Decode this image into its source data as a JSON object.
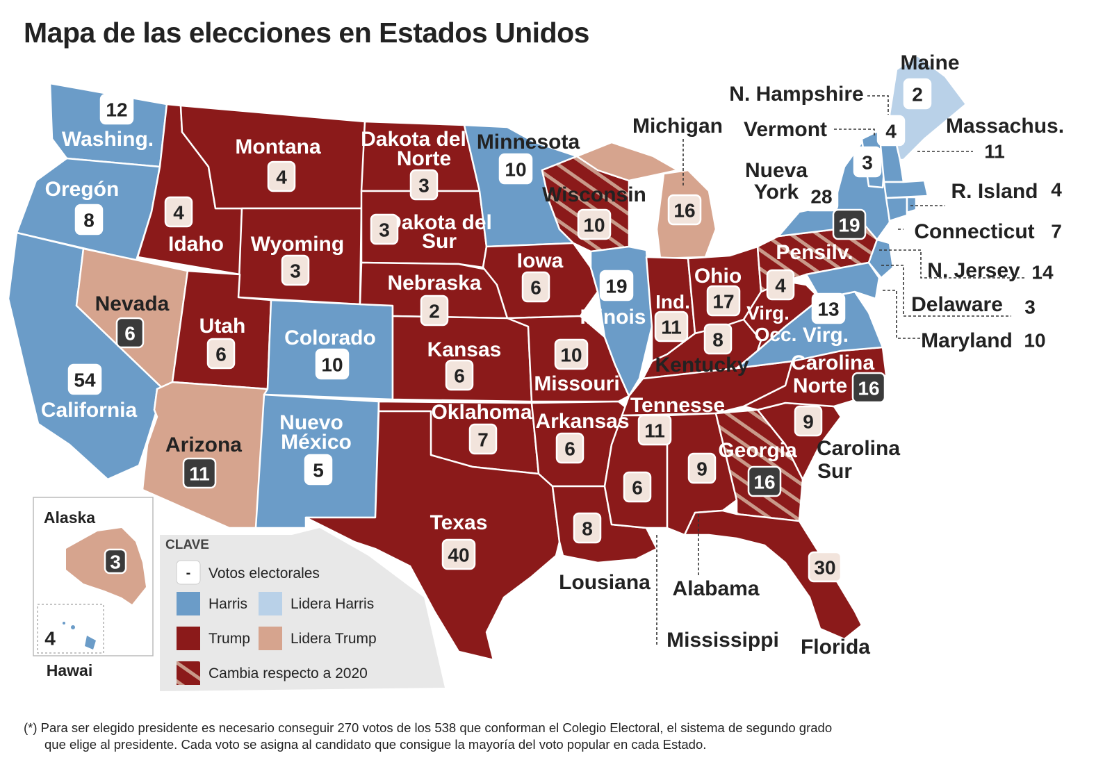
{
  "title": "Mapa de las elecciones en Estados Unidos",
  "colors": {
    "harris": "#6b9cc8",
    "lidera_harris": "#b9d1e8",
    "trump": "#8b1a1a",
    "lidera_trump": "#d6a48e",
    "badge_light": "#f2e4dc",
    "badge_white": "#ffffff",
    "badge_dark": "#3b3b3b"
  },
  "states": [
    {
      "name": "Washing.",
      "votes": "12"
    },
    {
      "name": "Oregón",
      "votes": "8"
    },
    {
      "name": "California",
      "votes": "54"
    },
    {
      "name": "Nevada",
      "votes": "6"
    },
    {
      "name": "Idaho",
      "votes": "4"
    },
    {
      "name": "Montana",
      "votes": "4"
    },
    {
      "name": "Wyoming",
      "votes": "3"
    },
    {
      "name": "Utah",
      "votes": "6"
    },
    {
      "name": "Arizona",
      "votes": "11"
    },
    {
      "name": "Colorado",
      "votes": "10"
    },
    {
      "name": "Nuevo México",
      "votes": "5"
    },
    {
      "name": "Dakota del Norte",
      "votes": "3"
    },
    {
      "name": "Dakota del Sur",
      "votes": "3"
    },
    {
      "name": "Nebraska",
      "votes": "2"
    },
    {
      "name": "Kansas",
      "votes": "6"
    },
    {
      "name": "Oklahoma",
      "votes": "7"
    },
    {
      "name": "Texas",
      "votes": "40"
    },
    {
      "name": "Minnesota",
      "votes": "10"
    },
    {
      "name": "Iowa",
      "votes": "6"
    },
    {
      "name": "Missouri",
      "votes": "10"
    },
    {
      "name": "Arkansas",
      "votes": "6"
    },
    {
      "name": "Wisconsin",
      "votes": "10"
    },
    {
      "name": "Illinois",
      "votes": "19"
    },
    {
      "name": "Michigan",
      "votes": "16"
    },
    {
      "name": "Ind.",
      "votes": "11"
    },
    {
      "name": "Ohio",
      "votes": "17"
    },
    {
      "name": "Kentucky",
      "votes": "8"
    },
    {
      "name": "Tennesse",
      "votes": "11"
    },
    {
      "name": "Lousiana",
      "votes": "8"
    },
    {
      "name": "Mississippi",
      "votes": "6"
    },
    {
      "name": "Alabama",
      "votes": "9"
    },
    {
      "name": "Georgia",
      "votes": "16"
    },
    {
      "name": "Florida",
      "votes": "30"
    },
    {
      "name": "Carolina Sur",
      "votes": "9"
    },
    {
      "name": "Carolina Norte",
      "votes": "16"
    },
    {
      "name": "Virg.",
      "votes": "13"
    },
    {
      "name": "Virg. Occ.",
      "votes": "4"
    },
    {
      "name": "Pensilv.",
      "votes": "19"
    },
    {
      "name": "Nueva York",
      "votes": "28"
    },
    {
      "name": "Vermont",
      "votes": "3"
    },
    {
      "name": "N. Hampshire",
      "votes": "4"
    },
    {
      "name": "Maine",
      "votes": "2"
    },
    {
      "name": "Massachus.",
      "votes": "11"
    },
    {
      "name": "R. Island",
      "votes": "4"
    },
    {
      "name": "Connecticut",
      "votes": "7"
    },
    {
      "name": "N. Jersey",
      "votes": "14"
    },
    {
      "name": "Delaware",
      "votes": "3"
    },
    {
      "name": "Maryland",
      "votes": "10"
    },
    {
      "name": "Alaska",
      "votes": "3"
    },
    {
      "name": "Hawai",
      "votes": "4"
    }
  ],
  "legend": {
    "title": "CLAVE",
    "votes_symbol": "-",
    "votes_label": "Votos electorales",
    "harris": "Harris",
    "lidera_harris": "Lidera Harris",
    "trump": "Trump",
    "lidera_trump": "Lidera Trump",
    "cambia": "Cambia respecto a 2020"
  },
  "footnote": {
    "line1": "(*) Para ser elegido presidente es necesario conseguir 270 votos de los 538 que conforman el Colegio Electoral, el sistema de segundo grado",
    "line2": "que elige al presidente. Cada voto se asigna al candidato que consigue la mayoría del voto popular en cada Estado."
  }
}
